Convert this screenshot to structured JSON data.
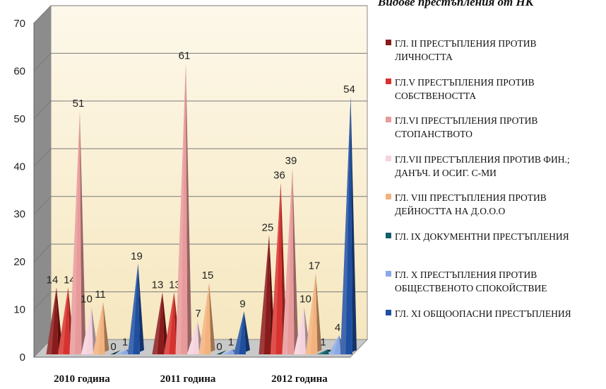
{
  "chart_data": {
    "type": "bar",
    "title": "Видове престъпления от НК",
    "categories": [
      "2010 година",
      "2011 година",
      "2012 година"
    ],
    "ylim": [
      0,
      70
    ],
    "yticks": [
      0,
      10,
      20,
      30,
      40,
      50,
      60,
      70
    ],
    "grid": true,
    "legend_position": "right",
    "series": [
      {
        "name": "ГЛ. II ПРЕСТЪПЛЕНИЯ ПРОТИВ ЛИЧНОСТТА",
        "color": "#8b1a1a",
        "values": [
          14,
          13,
          25
        ]
      },
      {
        "name": "ГЛ.V ПРЕСТЪПЛЕНИЯ ПРОТИВ СОБСТВЕНОСТТА",
        "color": "#d8322e",
        "values": [
          14,
          13,
          36
        ]
      },
      {
        "name": "ГЛ.VI ПРЕСТЪПЛЕНИЯ ПРОТИВ СТОПАНСТВОТО",
        "color": "#e89a9a",
        "values": [
          51,
          61,
          39
        ]
      },
      {
        "name": "ГЛ.VII ПРЕСТЪПЛЕНИЯ ПРОТИВ ФИН.; ДАНЪЧ. И ОСИГ. С-МИ",
        "color": "#f6d2dd",
        "values": [
          10,
          7,
          10
        ]
      },
      {
        "name": "ГЛ. VIII ПРЕСТЪПЛЕНИЯ ПРОТИВ ДЕЙНОСТТА НА Д.О.О.О",
        "color": "#f3b27c",
        "values": [
          11,
          15,
          17
        ]
      },
      {
        "name": "ГЛ. IX ДОКУМЕНТНИ ПРЕСТЪПЛЕНИЯ",
        "color": "#11606a",
        "values": [
          0,
          0,
          1
        ]
      },
      {
        "name": "ГЛ. X ПРЕСТЪПЛЕНИЯ ПРОТИВ ОБЩЕСТВЕНОТО СПОКОЙСТВИЕ",
        "color": "#8aa8e6",
        "values": [
          1,
          1,
          4
        ]
      },
      {
        "name": "ГЛ. XI ОБЩООПАСНИ ПРЕСТЪПЛЕНИЯ",
        "color": "#1f4fa0",
        "values": [
          19,
          9,
          54
        ]
      }
    ]
  }
}
